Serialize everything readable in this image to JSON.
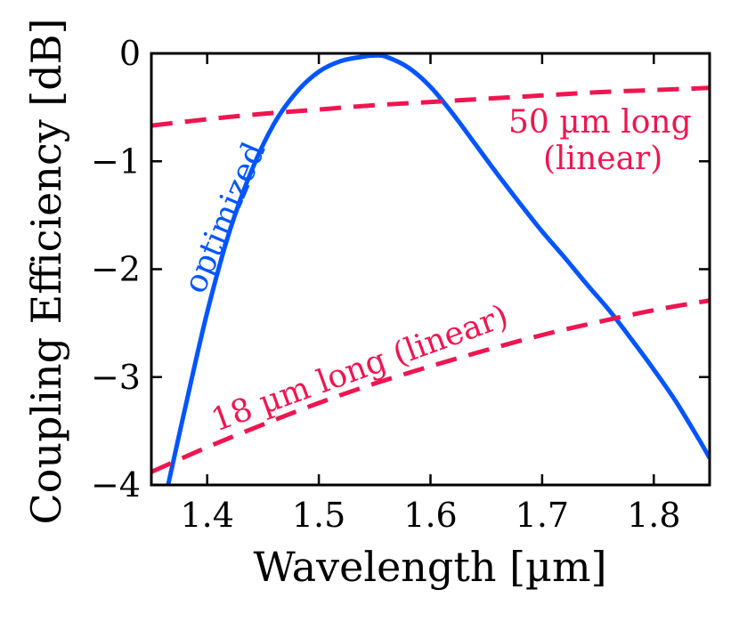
{
  "chart_data": {
    "type": "line",
    "title": "",
    "xlabel": "Wavelength [µm]",
    "ylabel": "Coupling Efficiency [dB]",
    "xlim": [
      1.35,
      1.85
    ],
    "ylim": [
      -4,
      0
    ],
    "grid": false,
    "legend": "none",
    "x_ticks": [
      1.4,
      1.5,
      1.6,
      1.7,
      1.8
    ],
    "x_tick_labels": [
      "1.4",
      "1.5",
      "1.6",
      "1.7",
      "1.8"
    ],
    "y_ticks": [
      0,
      -1,
      -2,
      -3,
      -4
    ],
    "y_tick_labels": [
      "0",
      "−1",
      "−2",
      "−3",
      "−4"
    ],
    "series": [
      {
        "name": "optimized",
        "color": "#0055ff",
        "style": "solid",
        "x": [
          1.365,
          1.38,
          1.4,
          1.42,
          1.44,
          1.46,
          1.48,
          1.5,
          1.52,
          1.54,
          1.55,
          1.56,
          1.58,
          1.6,
          1.62,
          1.64,
          1.66,
          1.68,
          1.7,
          1.72,
          1.74,
          1.76,
          1.78,
          1.8,
          1.82,
          1.84,
          1.85
        ],
        "values": [
          -4.0,
          -3.3,
          -2.4,
          -1.65,
          -1.08,
          -0.65,
          -0.36,
          -0.17,
          -0.07,
          -0.03,
          -0.02,
          -0.03,
          -0.13,
          -0.31,
          -0.56,
          -0.84,
          -1.12,
          -1.39,
          -1.65,
          -1.89,
          -2.14,
          -2.38,
          -2.65,
          -2.93,
          -3.23,
          -3.57,
          -3.75
        ]
      },
      {
        "name": "50 µm long (linear)",
        "color": "#ee1650",
        "style": "dashed",
        "x": [
          1.35,
          1.4,
          1.45,
          1.5,
          1.55,
          1.6,
          1.65,
          1.7,
          1.75,
          1.8,
          1.85
        ],
        "values": [
          -0.67,
          -0.61,
          -0.56,
          -0.52,
          -0.48,
          -0.45,
          -0.42,
          -0.39,
          -0.36,
          -0.34,
          -0.32
        ]
      },
      {
        "name": "18 µm long (linear)",
        "color": "#ee1650",
        "style": "dashed",
        "x": [
          1.35,
          1.4,
          1.45,
          1.5,
          1.55,
          1.6,
          1.65,
          1.7,
          1.75,
          1.8,
          1.85
        ],
        "values": [
          -3.88,
          -3.65,
          -3.44,
          -3.24,
          -3.06,
          -2.9,
          -2.75,
          -2.61,
          -2.49,
          -2.38,
          -2.29
        ]
      }
    ],
    "annotations": [
      {
        "text": "optimized",
        "color": "#0055ff"
      },
      {
        "text": "50 µm long",
        "color": "#ee1650"
      },
      {
        "text": "(linear)",
        "color": "#ee1650"
      },
      {
        "text": "18 µm long  (linear)",
        "color": "#ee1650"
      }
    ]
  }
}
